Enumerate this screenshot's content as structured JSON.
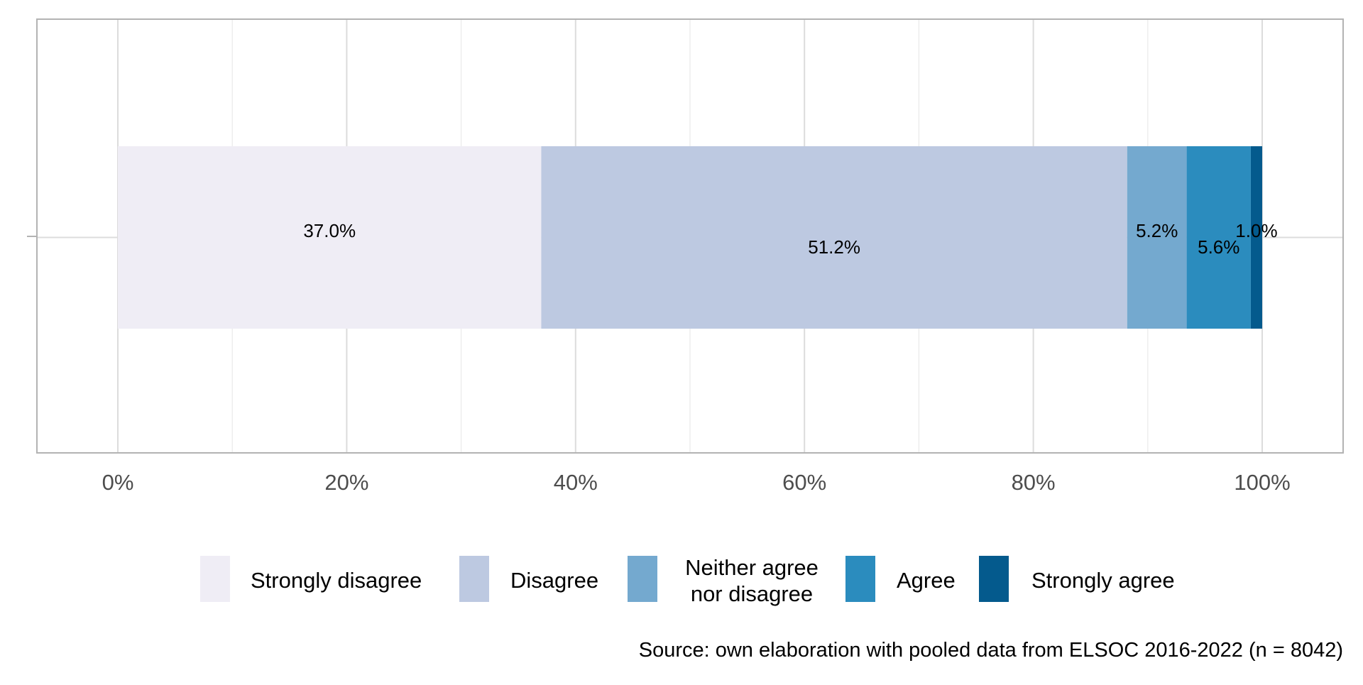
{
  "chart_data": {
    "type": "bar",
    "orientation": "horizontal-stacked",
    "xlim": [
      0,
      100
    ],
    "x_ticks": [
      0,
      20,
      40,
      60,
      80,
      100
    ],
    "x_tick_labels": [
      "0%",
      "20%",
      "40%",
      "60%",
      "80%",
      "100%"
    ],
    "grid": true,
    "legend_position": "bottom",
    "series": [
      {
        "name": "Strongly disagree",
        "value": 37.0,
        "label": "37.0%",
        "color": "#efedf5"
      },
      {
        "name": "Disagree",
        "value": 51.2,
        "label": "51.2%",
        "color": "#bdc9e1"
      },
      {
        "name": "Neither agree\nnor disagree",
        "value": 5.2,
        "label": "5.2%",
        "color": "#74a9cf"
      },
      {
        "name": "Agree",
        "value": 5.6,
        "label": "5.6%",
        "color": "#2b8cbe"
      },
      {
        "name": "Strongly agree",
        "value": 1.0,
        "label": "1.0%",
        "color": "#045a8d"
      }
    ],
    "caption": "Source: own elaboration with pooled data from ELSOC 2016-2022 (n = 8042)"
  }
}
